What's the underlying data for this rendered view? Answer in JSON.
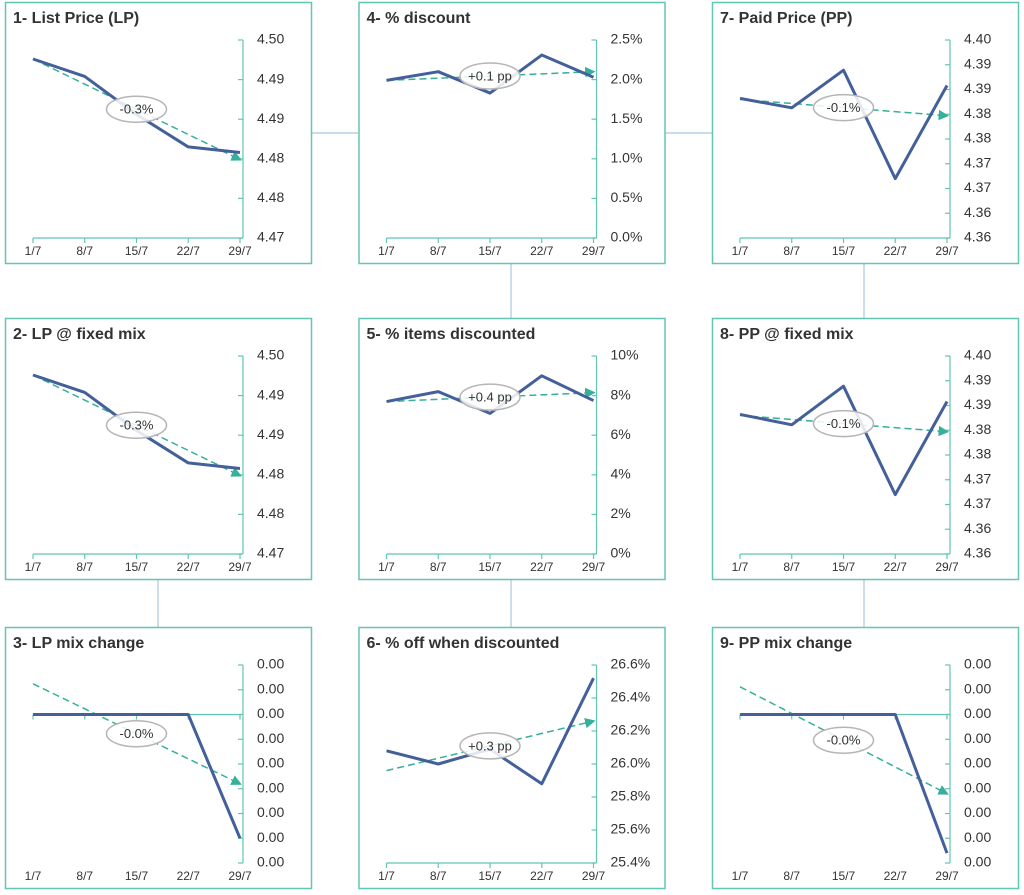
{
  "chart_data": [
    {
      "type": "line",
      "title": "1- List Price (LP)",
      "categories": [
        "1/7",
        "8/7",
        "15/7",
        "22/7",
        "29/7"
      ],
      "series": [
        {
          "color": "#44609a",
          "values": [
            4.4926,
            4.4904,
            4.4856,
            4.4815,
            4.4808
          ]
        }
      ],
      "trend": [
        4.4926,
        4.4799
      ],
      "trend_color": "#35b09a",
      "annotation": "-0.3%",
      "ylim": [
        4.47,
        4.495
      ],
      "yticks": [
        4.47,
        {
          "value": 4.475,
          "label": "4.48"
        },
        4.48,
        {
          "value": 4.485,
          "label": "4.49"
        },
        4.49,
        {
          "value": 4.495,
          "label": "4.50"
        }
      ]
    },
    {
      "type": "line",
      "title": "2- LP @ fixed mix",
      "categories": [
        "1/7",
        "8/7",
        "15/7",
        "22/7",
        "29/7"
      ],
      "series": [
        {
          "color": "#44609a",
          "values": [
            4.4926,
            4.4904,
            4.4856,
            4.4815,
            4.4808
          ]
        }
      ],
      "trend": [
        4.4926,
        4.4799
      ],
      "trend_color": "#35b09a",
      "annotation": "-0.3%",
      "ylim": [
        4.47,
        4.495
      ],
      "yticks": [
        4.47,
        {
          "value": 4.475,
          "label": "4.48"
        },
        4.48,
        {
          "value": 4.485,
          "label": "4.49"
        },
        4.49,
        {
          "value": 4.495,
          "label": "4.50"
        }
      ]
    },
    {
      "type": "line",
      "title": "3- LP mix change",
      "categories": [
        "1/7",
        "8/7",
        "15/7",
        "22/7",
        "29/7"
      ],
      "series": [
        {
          "color": "#44609a",
          "values": [
            0,
            0,
            0,
            0,
            -0.005
          ]
        }
      ],
      "trend": [
        0.00124,
        -0.0028
      ],
      "trend_color": "#35b09a",
      "annotation": "-0.0%",
      "ylim": [
        -0.006,
        0.002
      ],
      "yticks": [
        {
          "value": -0.006,
          "label": "0.00"
        },
        {
          "value": -0.005,
          "label": "0.00"
        },
        {
          "value": -0.004,
          "label": "0.00"
        },
        {
          "value": -0.003,
          "label": "0.00"
        },
        {
          "value": -0.002,
          "label": "0.00"
        },
        {
          "value": -0.001,
          "label": "0.00"
        },
        {
          "value": 0,
          "label": "0.00"
        },
        {
          "value": 0.001,
          "label": "0.00"
        },
        {
          "value": 0.002,
          "label": "0.00"
        }
      ]
    },
    {
      "type": "line",
      "title": "4- % discount",
      "categories": [
        "1/7",
        "8/7",
        "15/7",
        "22/7",
        "29/7"
      ],
      "series": [
        {
          "color": "#44609a",
          "values": [
            1.99,
            2.1,
            1.83,
            2.31,
            2.03
          ]
        }
      ],
      "trend": [
        1.99,
        2.1
      ],
      "trend_color": "#35b09a",
      "annotation": "+0.1 pp",
      "ylim": [
        0,
        2.5
      ],
      "yticks": [
        {
          "value": 0,
          "label": "0.0%"
        },
        {
          "value": 0.5,
          "label": "0.5%"
        },
        {
          "value": 1,
          "label": "1.0%"
        },
        {
          "value": 1.5,
          "label": "1.5%"
        },
        {
          "value": 2,
          "label": "2.0%"
        },
        {
          "value": 2.5,
          "label": "2.5%"
        }
      ]
    },
    {
      "type": "line",
      "title": "5- % items discounted",
      "categories": [
        "1/7",
        "8/7",
        "15/7",
        "22/7",
        "29/7"
      ],
      "series": [
        {
          "color": "#44609a",
          "values": [
            7.7,
            8.2,
            7.1,
            9.0,
            7.75
          ]
        }
      ],
      "trend": [
        7.7,
        8.15
      ],
      "trend_color": "#35b09a",
      "annotation": "+0.4 pp",
      "ylim": [
        0,
        10
      ],
      "yticks": [
        {
          "value": 0,
          "label": "0%"
        },
        {
          "value": 2,
          "label": "2%"
        },
        {
          "value": 4,
          "label": "4%"
        },
        {
          "value": 6,
          "label": "6%"
        },
        {
          "value": 8,
          "label": "8%"
        },
        {
          "value": 10,
          "label": "10%"
        }
      ]
    },
    {
      "type": "line",
      "title": "6- % off when discounted",
      "categories": [
        "1/7",
        "8/7",
        "15/7",
        "22/7",
        "29/7"
      ],
      "series": [
        {
          "color": "#44609a",
          "values": [
            26.08,
            26.0,
            26.09,
            25.88,
            26.52
          ]
        }
      ],
      "trend": [
        25.96,
        26.26
      ],
      "trend_color": "#35b09a",
      "annotation": "+0.3 pp",
      "ylim": [
        25.4,
        26.6
      ],
      "yticks": [
        {
          "value": 25.4,
          "label": "25.4%"
        },
        {
          "value": 25.6,
          "label": "25.6%"
        },
        {
          "value": 25.8,
          "label": "25.8%"
        },
        {
          "value": 26.0,
          "label": "26.0%"
        },
        {
          "value": 26.2,
          "label": "26.2%"
        },
        {
          "value": 26.4,
          "label": "26.4%"
        },
        {
          "value": 26.6,
          "label": "26.6%"
        }
      ]
    },
    {
      "type": "line",
      "title": "7- Paid Price (PP)",
      "categories": [
        "1/7",
        "8/7",
        "15/7",
        "22/7",
        "29/7"
      ],
      "series": [
        {
          "color": "#44609a",
          "values": [
            4.3882,
            4.3863,
            4.3939,
            4.372,
            4.3908
          ]
        }
      ],
      "trend": [
        4.388,
        4.3847
      ],
      "trend_color": "#35b09a",
      "annotation": "-0.1%",
      "ylim": [
        4.36,
        4.4
      ],
      "yticks": [
        4.36,
        {
          "value": 4.365,
          "label": "4.36"
        },
        4.37,
        {
          "value": 4.375,
          "label": "4.37"
        },
        4.38,
        {
          "value": 4.385,
          "label": "4.38"
        },
        4.39,
        {
          "value": 4.395,
          "label": "4.39"
        },
        {
          "value": 4.4,
          "label": "4.40"
        }
      ]
    },
    {
      "type": "line",
      "title": "8- PP @ fixed mix",
      "categories": [
        "1/7",
        "8/7",
        "15/7",
        "22/7",
        "29/7"
      ],
      "series": [
        {
          "color": "#44609a",
          "values": [
            4.3882,
            4.3861,
            4.3939,
            4.372,
            4.3908
          ]
        }
      ],
      "trend": [
        4.388,
        4.3847
      ],
      "trend_color": "#35b09a",
      "annotation": "-0.1%",
      "ylim": [
        4.36,
        4.4
      ],
      "yticks": [
        4.36,
        {
          "value": 4.365,
          "label": "4.36"
        },
        4.37,
        {
          "value": 4.375,
          "label": "4.37"
        },
        4.38,
        {
          "value": 4.385,
          "label": "4.38"
        },
        4.39,
        {
          "value": 4.395,
          "label": "4.39"
        },
        {
          "value": 4.4,
          "label": "4.40"
        }
      ]
    },
    {
      "type": "line",
      "title": "9- PP mix change",
      "categories": [
        "1/7",
        "8/7",
        "15/7",
        "22/7",
        "29/7"
      ],
      "series": [
        {
          "color": "#44609a",
          "values": [
            0,
            0,
            0,
            0,
            -0.0056
          ]
        }
      ],
      "trend": [
        0.00112,
        -0.0032
      ],
      "trend_color": "#35b09a",
      "annotation": "-0.0%",
      "negative_tick_color": "#e00000",
      "ylim": [
        -0.006,
        0.002
      ],
      "yticks": [
        {
          "value": -0.006,
          "label": "0.00"
        },
        {
          "value": -0.005,
          "label": "0.00"
        },
        {
          "value": -0.004,
          "label": "0.00"
        },
        {
          "value": -0.003,
          "label": "0.00"
        },
        {
          "value": -0.002,
          "label": "0.00"
        },
        {
          "value": -0.001,
          "label": "0.00"
        },
        {
          "value": 0,
          "label": "0.00"
        },
        {
          "value": 0.001,
          "label": "0.00"
        },
        {
          "value": 0.002,
          "label": "0.00"
        }
      ]
    }
  ]
}
